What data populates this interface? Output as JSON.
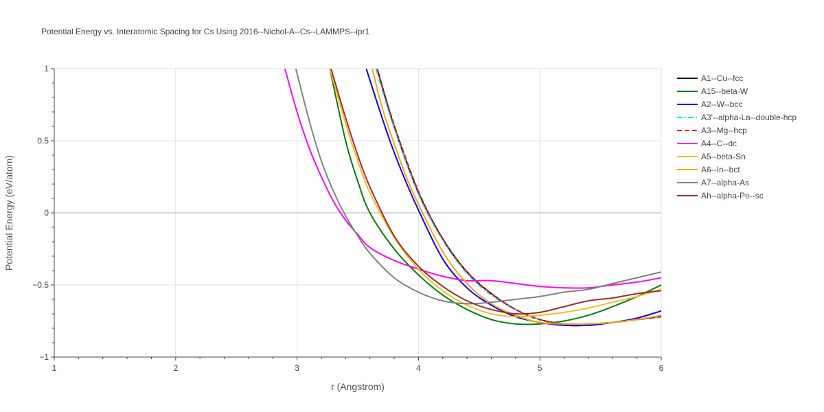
{
  "chart_data": {
    "type": "line",
    "title": "Potential Energy vs. Interatomic Spacing for Cs Using 2016--Nichol-A--Cs--LAMMPS--ipr1",
    "xlabel": "r (Angstrom)",
    "ylabel": "Potential Energy (eV/atom)",
    "xlim": [
      1,
      6
    ],
    "ylim": [
      -1,
      1
    ],
    "xticks": [
      1,
      2,
      3,
      4,
      5,
      6
    ],
    "yticks": [
      -1,
      -0.5,
      0,
      0.5,
      1
    ],
    "ytick_labels": [
      "−1",
      "−0.5",
      "0",
      "0.5",
      "1"
    ],
    "grid": true,
    "legend_position": "right",
    "series": [
      {
        "name": "A1--Cu--fcc",
        "color": "#000000",
        "dash": "solid",
        "x": [
          3.66,
          3.8,
          4.0,
          4.2,
          4.4,
          4.6,
          4.8,
          5.0,
          5.2,
          5.4,
          5.6,
          5.8,
          6.0
        ],
        "y": [
          1.0,
          0.6,
          0.14,
          -0.18,
          -0.41,
          -0.56,
          -0.67,
          -0.74,
          -0.77,
          -0.77,
          -0.76,
          -0.74,
          -0.72
        ]
      },
      {
        "name": "A15--beta-W",
        "color": "#008000",
        "dash": "solid",
        "x": [
          3.27,
          3.4,
          3.5,
          3.6,
          3.8,
          4.0,
          4.2,
          4.4,
          4.6,
          4.8,
          5.0,
          5.2,
          5.4,
          5.6,
          5.8,
          6.0
        ],
        "y": [
          1.0,
          0.5,
          0.22,
          0.0,
          -0.25,
          -0.43,
          -0.57,
          -0.67,
          -0.74,
          -0.77,
          -0.77,
          -0.75,
          -0.71,
          -0.65,
          -0.58,
          -0.5
        ]
      },
      {
        "name": "A2--W--bcc",
        "color": "#0000ff",
        "dash": "solid",
        "x": [
          3.57,
          3.7,
          3.8,
          3.9,
          4.0,
          4.2,
          4.4,
          4.6,
          4.8,
          5.0,
          5.2,
          5.4,
          5.6,
          5.8,
          6.0
        ],
        "y": [
          1.0,
          0.66,
          0.42,
          0.21,
          0.02,
          -0.32,
          -0.52,
          -0.64,
          -0.72,
          -0.76,
          -0.78,
          -0.78,
          -0.76,
          -0.73,
          -0.68
        ]
      },
      {
        "name": "A3'--alpha-La--double-hcp",
        "color": "#00e5ee",
        "dash": "dashdot",
        "x": [
          3.65,
          3.8,
          4.0,
          4.2,
          4.4,
          4.6,
          4.8,
          5.0,
          5.2,
          5.4,
          5.6,
          5.8,
          6.0
        ],
        "y": [
          1.0,
          0.59,
          0.13,
          -0.19,
          -0.42,
          -0.57,
          -0.67,
          -0.74,
          -0.77,
          -0.77,
          -0.76,
          -0.74,
          -0.72
        ]
      },
      {
        "name": "A3--Mg--hcp",
        "color": "#ff0000",
        "dash": "dash",
        "x": [
          3.66,
          3.8,
          4.0,
          4.2,
          4.4,
          4.6,
          4.8,
          5.0,
          5.2,
          5.4,
          5.6,
          5.8,
          6.0
        ],
        "y": [
          1.0,
          0.61,
          0.15,
          -0.18,
          -0.41,
          -0.56,
          -0.67,
          -0.74,
          -0.77,
          -0.77,
          -0.76,
          -0.74,
          -0.72
        ]
      },
      {
        "name": "A4--C--dc",
        "color": "#ff00ff",
        "dash": "solid",
        "x": [
          2.9,
          3.0,
          3.1,
          3.2,
          3.3,
          3.4,
          3.5,
          3.6,
          3.8,
          4.0,
          4.2,
          4.4,
          4.6,
          4.8,
          5.0,
          5.2,
          5.4,
          5.6,
          5.8,
          6.0
        ],
        "y": [
          1.0,
          0.7,
          0.45,
          0.25,
          0.08,
          -0.05,
          -0.15,
          -0.24,
          -0.33,
          -0.39,
          -0.44,
          -0.47,
          -0.47,
          -0.49,
          -0.51,
          -0.52,
          -0.52,
          -0.5,
          -0.48,
          -0.45
        ]
      },
      {
        "name": "A5--beta-Sn",
        "color": "#e6c229",
        "dash": "solid",
        "x": [
          3.27,
          3.4,
          3.5,
          3.6,
          3.8,
          4.0,
          4.2,
          4.4,
          4.6,
          4.8,
          5.0,
          5.2,
          5.4,
          5.6,
          5.8,
          6.0
        ],
        "y": [
          1.0,
          0.62,
          0.36,
          0.14,
          -0.17,
          -0.39,
          -0.54,
          -0.64,
          -0.7,
          -0.72,
          -0.71,
          -0.69,
          -0.66,
          -0.62,
          -0.58,
          -0.53
        ]
      },
      {
        "name": "A6--In--bct",
        "color": "#ffa500",
        "dash": "solid",
        "x": [
          3.62,
          3.7,
          3.8,
          3.9,
          4.0,
          4.2,
          4.4,
          4.6,
          4.8,
          5.0,
          5.2,
          5.4,
          5.6,
          5.8,
          6.0
        ],
        "y": [
          1.0,
          0.73,
          0.48,
          0.25,
          0.06,
          -0.27,
          -0.49,
          -0.63,
          -0.71,
          -0.76,
          -0.77,
          -0.77,
          -0.76,
          -0.74,
          -0.71
        ]
      },
      {
        "name": "A7--alpha-As",
        "color": "#808080",
        "dash": "solid",
        "x": [
          2.99,
          3.1,
          3.2,
          3.3,
          3.4,
          3.5,
          3.6,
          3.8,
          4.0,
          4.2,
          4.4,
          4.6,
          4.8,
          5.0,
          5.2,
          5.4,
          5.6,
          5.8,
          6.0
        ],
        "y": [
          1.0,
          0.64,
          0.36,
          0.15,
          -0.02,
          -0.16,
          -0.28,
          -0.45,
          -0.55,
          -0.61,
          -0.63,
          -0.62,
          -0.6,
          -0.58,
          -0.55,
          -0.53,
          -0.49,
          -0.45,
          -0.41
        ]
      },
      {
        "name": "Ah--alpha-Po--sc",
        "color": "#a52a2a",
        "dash": "solid",
        "x": [
          3.28,
          3.4,
          3.5,
          3.6,
          3.8,
          4.0,
          4.2,
          4.4,
          4.6,
          4.8,
          5.0,
          5.2,
          5.4,
          5.6,
          5.8,
          6.0
        ],
        "y": [
          1.0,
          0.66,
          0.4,
          0.18,
          -0.16,
          -0.37,
          -0.51,
          -0.61,
          -0.67,
          -0.7,
          -0.69,
          -0.65,
          -0.61,
          -0.59,
          -0.56,
          -0.54
        ]
      }
    ]
  }
}
